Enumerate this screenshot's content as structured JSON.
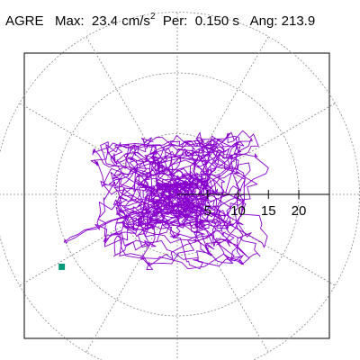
{
  "header": {
    "station": "AGRE",
    "max_label": "Max:",
    "max_value": "23.4",
    "max_unit": "cm/s",
    "max_unit_exp": "2",
    "period_label": "Per:",
    "period_value": "0.150 s",
    "angle_label": "Ang:",
    "angle_value": "213.9"
  },
  "chart_data": {
    "type": "polar",
    "subtype": "hodogram",
    "units": "cm/s^2",
    "radial_ticks": [
      5,
      10,
      15,
      20
    ],
    "radial_tick_labels": [
      "5",
      "10",
      "15",
      "20"
    ],
    "grid_circles": [
      10,
      20,
      30
    ],
    "grid_spokes_deg": [
      0,
      30,
      60,
      90,
      120,
      150,
      180,
      210,
      240,
      270,
      300,
      330
    ],
    "grid": true,
    "max_acceleration": 23.4,
    "max_angle_deg": 213.9,
    "trace_color": "#8800cc",
    "marker_color": "#009977",
    "grid_color": "#888888"
  }
}
